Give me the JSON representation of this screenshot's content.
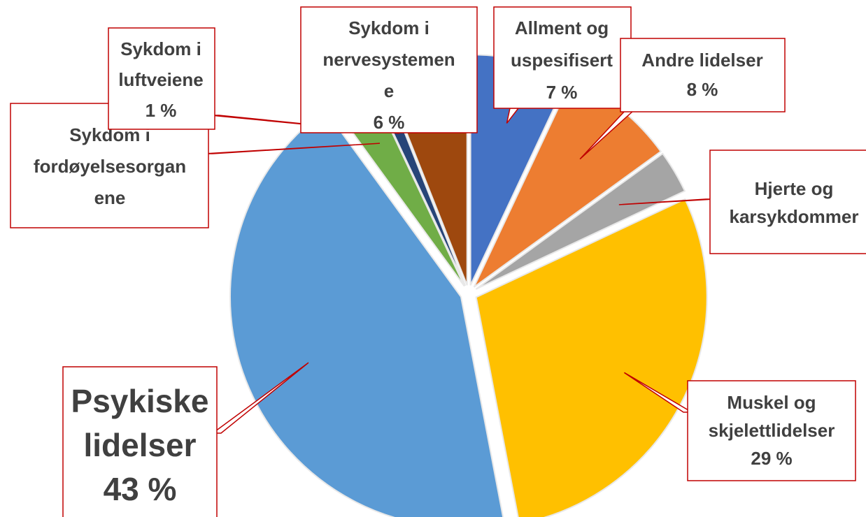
{
  "chart_data": {
    "type": "pie",
    "categories": [
      "Allment og uspesifisert",
      "Andre lidelser",
      "Hjerte og karsykdommer",
      "Muskel og skjelettlidelser",
      "Psykiske lidelser",
      "Sykdom i fordøyelsesorganene",
      "Sykdom i luftveiene",
      "Sykdom i nervesystemene"
    ],
    "values": [
      7,
      8,
      3,
      29,
      43,
      3,
      1,
      6
    ],
    "value_labels": [
      "7 %",
      "8 %",
      null,
      "29 %",
      "43 %",
      null,
      "1 %",
      "6 %"
    ],
    "colors": [
      "#4472c4",
      "#ed7d31",
      "#a5a5a5",
      "#ffc000",
      "#5b9bd5",
      "#70ad47",
      "#264478",
      "#9e480e"
    ]
  }
}
